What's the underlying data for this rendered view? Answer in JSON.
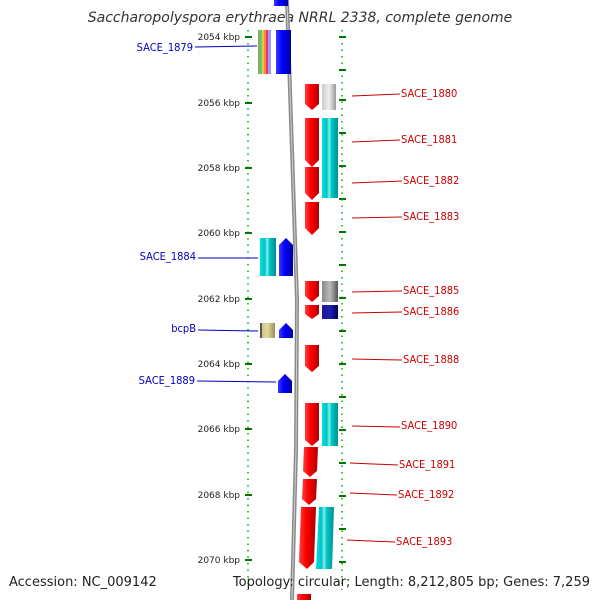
{
  "title": "Saccharopolyspora erythraea NRRL 2338, complete genome",
  "accession": "Accession: NC_009142",
  "topology": "Topology: circular; Length: 8,212,805 bp; Genes: 7,259",
  "colors": {
    "forward_gene": "#ee0000",
    "reverse_gene": "#0000ee",
    "forward_label": "#cc0000",
    "reverse_label": "#0000bb",
    "cyan": "#00c8c8",
    "tick": "#007700"
  },
  "kbp_labels": [
    "2054 kbp",
    "2056 kbp",
    "2058 kbp",
    "2060 kbp",
    "2062 kbp",
    "2064 kbp",
    "2066 kbp",
    "2068 kbp",
    "2070 kbp"
  ],
  "left_labels": [
    "SACE_1879",
    "SACE_1884",
    "bcpB",
    "SACE_1889"
  ],
  "right_labels": [
    "SACE_1880",
    "SACE_1881",
    "SACE_1882",
    "SACE_1883",
    "SACE_1885",
    "SACE_1886",
    "SACE_1888",
    "SACE_1890",
    "SACE_1891",
    "SACE_1892",
    "SACE_1893"
  ]
}
